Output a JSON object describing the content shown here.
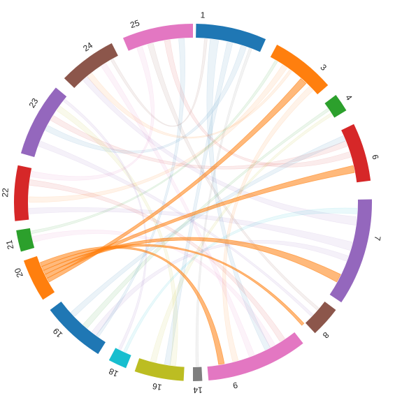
{
  "diagram": {
    "type": "chord",
    "highlighted_group": "20",
    "groups": [
      {
        "label": "1",
        "color": "#1f77b4"
      },
      {
        "label": "3",
        "color": "#ff7f0e"
      },
      {
        "label": "4",
        "color": "#2ca02c"
      },
      {
        "label": "6",
        "color": "#d62728"
      },
      {
        "label": "7",
        "color": "#9467bd"
      },
      {
        "label": "8",
        "color": "#8c564b"
      },
      {
        "label": "9",
        "color": "#e377c2"
      },
      {
        "label": "14",
        "color": "#7f7f7f"
      },
      {
        "label": "16",
        "color": "#bcbd22"
      },
      {
        "label": "18",
        "color": "#17becf"
      },
      {
        "label": "19",
        "color": "#1f77b4"
      },
      {
        "label": "20",
        "color": "#ff7f0e"
      },
      {
        "label": "21",
        "color": "#2ca02c"
      },
      {
        "label": "22",
        "color": "#d62728"
      },
      {
        "label": "23",
        "color": "#9467bd"
      },
      {
        "label": "24",
        "color": "#8c564b"
      },
      {
        "label": "25",
        "color": "#e377c2"
      }
    ],
    "highlighted_links": [
      {
        "from": "20",
        "to": "3"
      },
      {
        "from": "20",
        "to": "6"
      },
      {
        "from": "20",
        "to": "7"
      },
      {
        "from": "20",
        "to": "8"
      },
      {
        "from": "20",
        "to": "9"
      }
    ]
  }
}
